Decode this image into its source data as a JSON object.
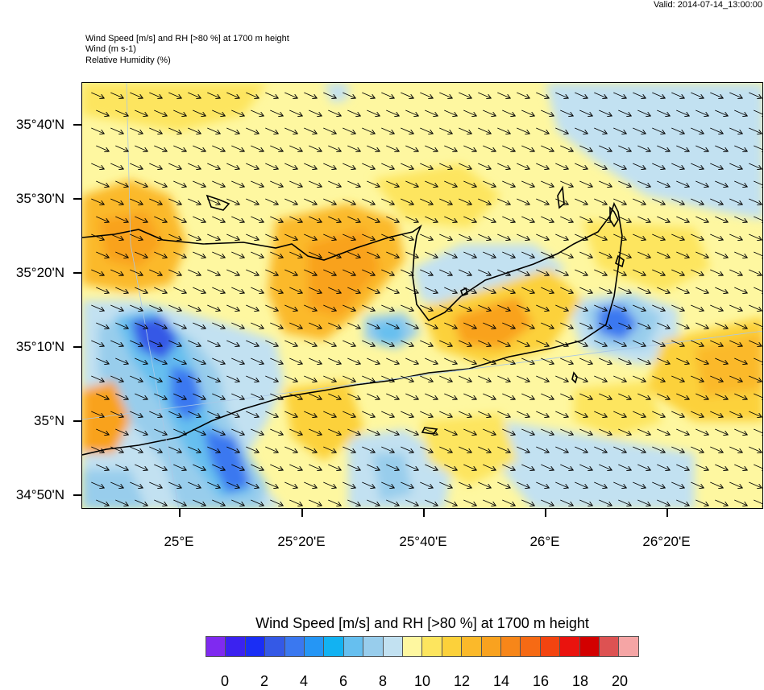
{
  "valid_time": "Valid: 2014-07-14_13:00:00",
  "header": {
    "line1": "Wind Speed [m/s] and RH [>80 %] at 1700 m height",
    "line2": "Wind   (m s-1)",
    "line3": "Relative Humidity   (%)"
  },
  "axes": {
    "lat_labels": [
      "35°40'N",
      "35°30'N",
      "35°20'N",
      "35°10'N",
      "35°N",
      "34°50'N"
    ],
    "lon_labels": [
      "25°E",
      "25°20'E",
      "25°40'E",
      "26°E",
      "26°20'E"
    ]
  },
  "colorbar": {
    "title": "Wind Speed [m/s] and RH [>80 %] at 1700 m height",
    "colors": [
      "#7f2af0",
      "#3b22f0",
      "#1a2ef5",
      "#3459e6",
      "#3a78f0",
      "#2596f5",
      "#12b2f2",
      "#66bfef",
      "#98cdec",
      "#c2e1f1",
      "#fef7a0",
      "#fde55e",
      "#fcd13a",
      "#fbb92a",
      "#f9a21f",
      "#f78619",
      "#f66a14",
      "#f34410",
      "#ea130e",
      "#d30000",
      "#dd5252",
      "#f5a5a5"
    ],
    "labels": [
      "0",
      "2",
      "4",
      "6",
      "8",
      "10",
      "12",
      "14",
      "16",
      "18",
      "20"
    ]
  },
  "wind_direction": "northwesterly (arrows pointing southeast)"
}
